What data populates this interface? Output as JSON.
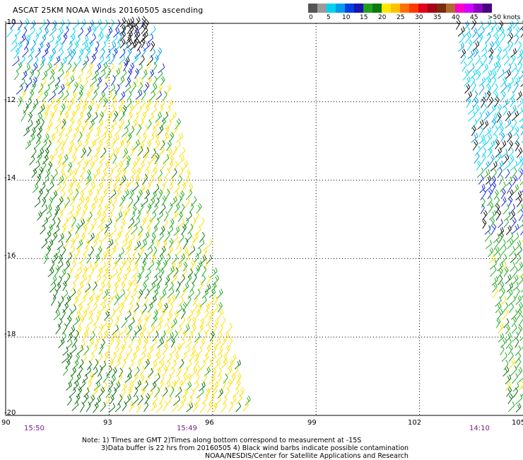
{
  "title": "ASCAT 25KM NOAA Winds 20160505 ascending",
  "legend": {
    "colors": [
      "#555555",
      "#9a9a9a",
      "#00d2f0",
      "#009de8",
      "#0040e0",
      "#1a14b0",
      "#20a020",
      "#0a7a0a",
      "#ffe800",
      "#ffc000",
      "#ff7000",
      "#ff3a00",
      "#e00018",
      "#a50018",
      "#7a2a10",
      "#b06a30",
      "#ff00c8",
      "#d000ff",
      "#8a00c0",
      "#4a0080"
    ],
    "labels": [
      "0",
      "5",
      "10",
      "15",
      "20",
      "25",
      "30",
      "35",
      "40",
      "45",
      ">50 knots"
    ]
  },
  "axes": {
    "lat_labels": [
      "-10",
      "-12",
      "-14",
      "-16",
      "-18",
      "-20"
    ],
    "lon_labels": [
      "90",
      "93",
      "96",
      "99",
      "102",
      "105"
    ]
  },
  "times": [
    "15:50",
    "15:49",
    "14:10"
  ],
  "notes": [
    "Note: 1) Times are GMT 2)Times along bottom correspond to measurement at -15S",
    "3)Data buffer is 22 hrs from 20160505 4) Black wind barbs indicate possible contamination",
    "NOAA/NESDIS/Center for Satellite Applications and Research"
  ],
  "map": {
    "lon_range": [
      90,
      105
    ],
    "lat_range": [
      -20,
      -10
    ],
    "gridlines": "dotted",
    "swaths": [
      {
        "name": "left-swath",
        "time": "15:50 / 15:49",
        "dominant_speed_knots": "20-25",
        "colors": [
          "yellow",
          "green",
          "blue",
          "black"
        ]
      },
      {
        "name": "right-swath",
        "time": "14:10",
        "dominant_speed_knots": "5-20",
        "colors": [
          "cyan",
          "blue",
          "green",
          "black"
        ]
      }
    ]
  }
}
